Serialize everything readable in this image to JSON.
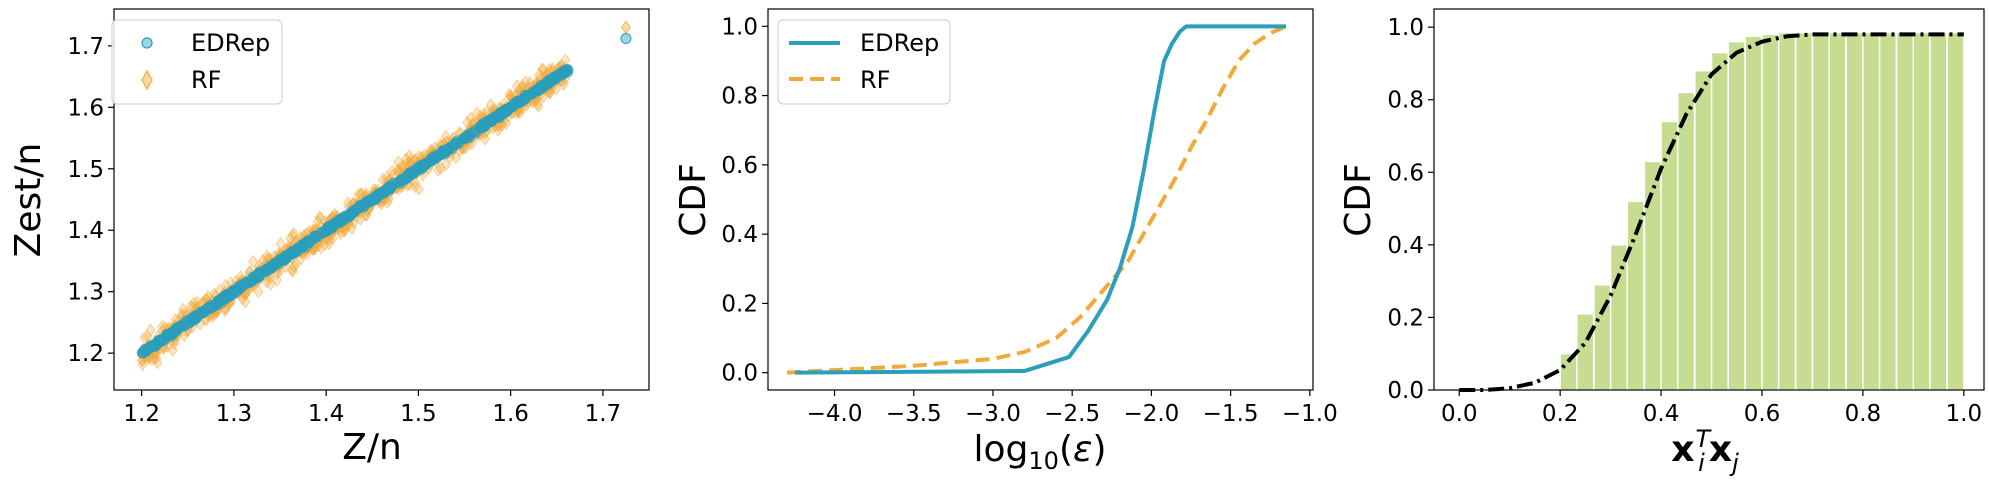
{
  "chart_data": [
    {
      "type": "scatter",
      "xlabel": "Z/n",
      "ylabel": "Zest/n",
      "xlim": [
        1.17,
        1.75
      ],
      "ylim": [
        1.14,
        1.76
      ],
      "xticks": [
        "1.2",
        "1.3",
        "1.4",
        "1.5",
        "1.6",
        "1.7"
      ],
      "yticks": [
        "1.2",
        "1.3",
        "1.4",
        "1.5",
        "1.6",
        "1.7"
      ],
      "legend_position": "top-left",
      "series": [
        {
          "name": "EDRep",
          "marker": "circle",
          "color": "#2a9fbc",
          "trend": "y = x",
          "x_range": [
            1.2,
            1.665
          ],
          "spread": 0.004,
          "outlier": [
            1.725,
            1.712
          ]
        },
        {
          "name": "RF",
          "marker": "diamond",
          "color": "#f2a93b",
          "trend": "y = x",
          "x_range": [
            1.2,
            1.66
          ],
          "spread": 0.03,
          "outlier": [
            1.725,
            1.73
          ]
        }
      ]
    },
    {
      "type": "line",
      "xlabel": "log10(ε)",
      "ylabel": "CDF",
      "xlim": [
        -4.42,
        -0.98
      ],
      "ylim": [
        -0.05,
        1.05
      ],
      "xticks": [
        "−4.0",
        "−3.5",
        "−3.0",
        "−2.5",
        "−2.0",
        "−1.5",
        "−1.0"
      ],
      "yticks": [
        "0.0",
        "0.2",
        "0.4",
        "0.6",
        "0.8",
        "1.0"
      ],
      "legend_position": "top-left",
      "series": [
        {
          "name": "EDRep",
          "style": "solid",
          "color": "#2a9fbc",
          "x": [
            -4.25,
            -2.8,
            -2.52,
            -2.4,
            -2.28,
            -2.2,
            -2.12,
            -2.05,
            -1.98,
            -1.92,
            -1.87,
            -1.82,
            -1.78,
            -1.74,
            -1.7,
            -1.65,
            -1.5,
            -1.3,
            -1.15
          ],
          "y": [
            0.0,
            0.005,
            0.045,
            0.12,
            0.21,
            0.3,
            0.42,
            0.58,
            0.76,
            0.9,
            0.95,
            0.985,
            1.0,
            1.0,
            1.0,
            1.0,
            1.0,
            1.0,
            1.0
          ]
        },
        {
          "name": "RF",
          "style": "dashed",
          "color": "#f2a93b",
          "x": [
            -4.3,
            -3.5,
            -3.0,
            -2.8,
            -2.6,
            -2.45,
            -2.3,
            -2.15,
            -2.0,
            -1.85,
            -1.75,
            -1.65,
            -1.55,
            -1.45,
            -1.35,
            -1.25,
            -1.15
          ],
          "y": [
            0.0,
            0.02,
            0.04,
            0.06,
            0.1,
            0.16,
            0.24,
            0.32,
            0.44,
            0.56,
            0.65,
            0.73,
            0.82,
            0.9,
            0.95,
            0.98,
            1.0
          ]
        }
      ]
    },
    {
      "type": "bar",
      "xlabel": "x_i^T x_j",
      "ylabel": "CDF",
      "xlim": [
        -0.05,
        1.04
      ],
      "ylim": [
        0.0,
        1.05
      ],
      "xticks": [
        "0.0",
        "0.2",
        "0.4",
        "0.6",
        "0.8",
        "1.0"
      ],
      "yticks": [
        "0.0",
        "0.2",
        "0.4",
        "0.6",
        "0.8",
        "1.0"
      ],
      "bar_color": "#c6dc91",
      "curve_style": "dash-dot",
      "curve_color": "#000000",
      "bins_x": [
        0.2,
        0.233,
        0.267,
        0.3,
        0.333,
        0.367,
        0.4,
        0.433,
        0.467,
        0.5,
        0.533,
        0.567,
        0.6,
        0.633,
        0.667,
        0.7,
        0.733,
        0.767,
        0.8,
        0.833,
        0.867,
        0.9,
        0.933,
        0.967
      ],
      "bins_y": [
        0.1,
        0.21,
        0.29,
        0.4,
        0.52,
        0.63,
        0.74,
        0.82,
        0.88,
        0.93,
        0.96,
        0.975,
        0.98,
        0.985,
        0.985,
        0.985,
        0.985,
        0.985,
        0.985,
        0.985,
        0.985,
        0.985,
        0.985,
        0.985
      ],
      "curve_x": [
        0.0,
        0.05,
        0.1,
        0.15,
        0.2,
        0.25,
        0.3,
        0.35,
        0.4,
        0.45,
        0.5,
        0.55,
        0.6,
        0.65,
        0.7,
        0.8,
        0.9,
        1.0
      ],
      "curve_y": [
        0.0,
        0.0,
        0.005,
        0.02,
        0.055,
        0.13,
        0.26,
        0.43,
        0.61,
        0.76,
        0.87,
        0.93,
        0.96,
        0.975,
        0.98,
        0.98,
        0.98,
        0.98
      ]
    }
  ]
}
